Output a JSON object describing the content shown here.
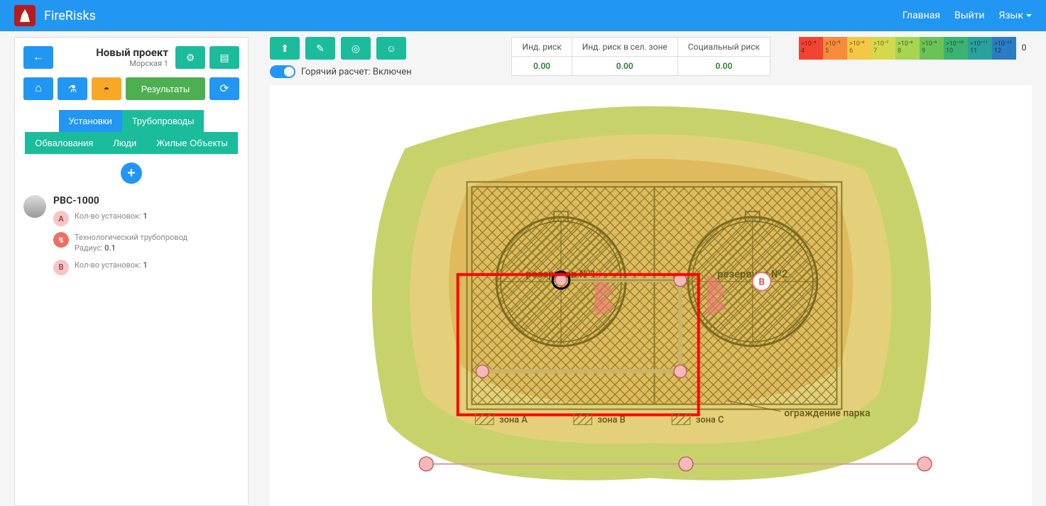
{
  "header": {
    "brand": "FireRisks",
    "nav": {
      "home": "Главная",
      "logout": "Выйти",
      "language": "Язык"
    }
  },
  "sidebar": {
    "project": {
      "title": "Новый проект",
      "subtitle": "Морская 1"
    },
    "buttons": {
      "results": "Результаты"
    },
    "tabs": {
      "installations": "Установки",
      "pipelines": "Трубопроводы",
      "bunds": "Обвалования",
      "people": "Люди",
      "buildings": "Жилые Объекты"
    },
    "item": {
      "title": "РВС-1000",
      "a": {
        "label": "А",
        "count_label": "Кол-во установок:",
        "count": "1"
      },
      "pipe": {
        "label": "Технологический трубопровод",
        "radius_label": "Радиус:",
        "radius": "0.1"
      },
      "b": {
        "label": "В",
        "count_label": "Кол-во установок:",
        "count": "1"
      }
    }
  },
  "top": {
    "toggle_label": "Горячий расчет: Включен",
    "risk_headers": {
      "ind": "Инд. риск",
      "sel": "Инд. риск в сел. зоне",
      "soc": "Социальный риск"
    },
    "risk_values": {
      "ind": "0.00",
      "sel": "0.00",
      "soc": "0.00"
    }
  },
  "legend": {
    "cells": [
      {
        "t": ">10⁻⁴",
        "b": "4",
        "color": "#f24333"
      },
      {
        "t": ">10⁻⁵",
        "b": "5",
        "color": "#f68c3c"
      },
      {
        "t": ">10⁻⁶",
        "b": "6",
        "color": "#f4c744"
      },
      {
        "t": ">10⁻⁷",
        "b": "7",
        "color": "#d4d94c"
      },
      {
        "t": ">10⁻⁸",
        "b": "8",
        "color": "#a7d451"
      },
      {
        "t": ">10⁻⁹",
        "b": "9",
        "color": "#6cc258"
      },
      {
        "t": ">10⁻¹⁰",
        "b": "10",
        "color": "#3bb273"
      },
      {
        "t": ">10⁻¹¹",
        "b": "11",
        "color": "#29a19c"
      },
      {
        "t": ">10⁻¹²",
        "b": "12",
        "color": "#2b7cc4"
      }
    ],
    "zero": "0"
  },
  "scene": {
    "colors": {
      "heat_outer": "#c7d36a",
      "heat_mid": "#e4d07a",
      "heat_inner": "#e0bb5e",
      "hatch": "#8a7a2b",
      "tank_line": "#7a6a20",
      "node_fill": "#f6b9b9",
      "node_stroke": "#c06060",
      "selection": "#ff0000",
      "text": "#6b5e1f"
    },
    "labels": {
      "tank1": "резервуар №1",
      "tank2": "резервуар №2",
      "fence": "ограждение парка",
      "zoneA": "зона A",
      "zoneB": "зона B",
      "zoneC": "зона C"
    },
    "badge_b": "B"
  }
}
